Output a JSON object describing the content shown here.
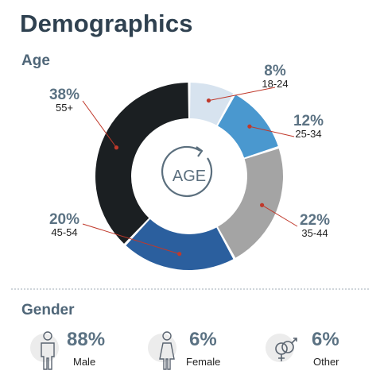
{
  "title": "Demographics",
  "age_section_label": "Age",
  "gender_section_label": "Gender",
  "center_label": "AGE",
  "chart_data": {
    "type": "pie",
    "title": "Age",
    "slices": [
      {
        "label": "18-24",
        "value": 8,
        "display": "8%",
        "color": "#d7e3ef"
      },
      {
        "label": "25-34",
        "value": 12,
        "display": "12%",
        "color": "#4a98cf"
      },
      {
        "label": "35-44",
        "value": 22,
        "display": "22%",
        "color": "#a4a4a4"
      },
      {
        "label": "45-54",
        "value": 20,
        "display": "20%",
        "color": "#2b5f9e"
      },
      {
        "label": "55+",
        "value": 38,
        "display": "38%",
        "color": "#1b1f22"
      }
    ]
  },
  "gender": [
    {
      "label": "Male",
      "percent": "88%",
      "icon": "male-person-icon"
    },
    {
      "label": "Female",
      "percent": "6%",
      "icon": "female-person-icon"
    },
    {
      "label": "Other",
      "percent": "6%",
      "icon": "gender-symbols-icon"
    }
  ],
  "colors": {
    "title": "#2f4150",
    "percent": "#5b7283",
    "leader_line": "#c0392b"
  }
}
